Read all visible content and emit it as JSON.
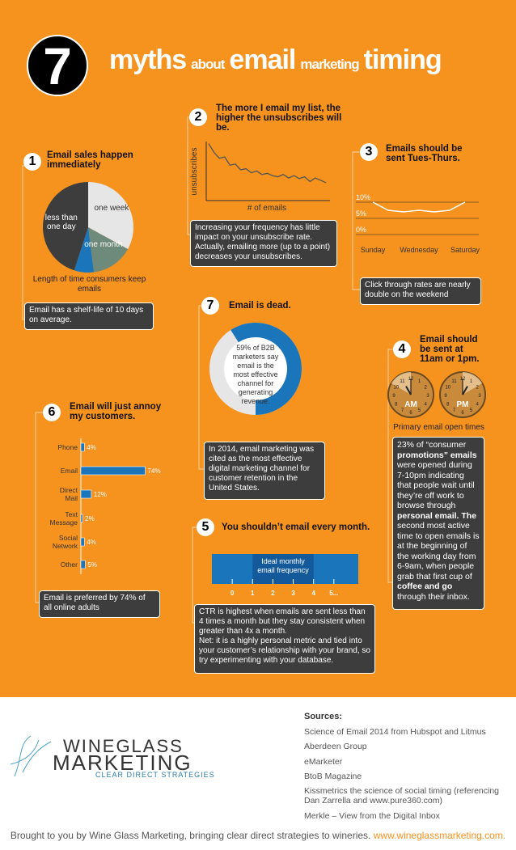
{
  "header": {
    "number": "7",
    "title_parts": [
      "myths",
      "about",
      "email",
      "marketing",
      "timing"
    ]
  },
  "myth1": {
    "number": "1",
    "title": "Email sales happen immediately",
    "pie": {
      "labels": [
        "one week",
        "one month",
        null,
        "less than one day"
      ],
      "values": [
        33,
        15,
        7,
        45
      ],
      "colors": [
        "#e6e6e6",
        "#6d8a7a",
        "#1b75bb",
        "#3d3d3d"
      ]
    },
    "caption": "Length of time consumers keep emails",
    "note": "Email has a shelf-life of 10 days on average."
  },
  "myth2": {
    "number": "2",
    "title": "The more I email my list, the higher the unsubscribes will be.",
    "ylabel": "unsubscribes",
    "xlabel": "# of emails",
    "values": [
      95,
      80,
      70,
      72,
      58,
      60,
      50,
      52,
      45,
      48,
      42,
      44,
      40,
      38,
      42,
      36,
      40,
      35,
      38,
      30,
      36,
      32,
      28
    ],
    "ylim": [
      0,
      100
    ],
    "note": "Increasing your frequency has little impact on your unsubscribe rate. Actually, emailing more (up to a point) decreases your unsubscribes."
  },
  "myth3": {
    "number": "3",
    "title": "Emails should be sent Tues-Thurs.",
    "categories": [
      "Sunday",
      null,
      null,
      "Wednesday",
      null,
      null,
      "Saturday"
    ],
    "values": [
      10,
      7.5,
      7,
      7.5,
      7,
      7.5,
      10
    ],
    "ylim": [
      0,
      10
    ],
    "yticks": [
      {
        "value": 10,
        "label": "10%"
      },
      {
        "value": 5,
        "label": "5%"
      },
      {
        "value": 0,
        "label": "0%"
      }
    ],
    "grid": true,
    "note": "Click through rates are nearly double on the weekend"
  },
  "myth7": {
    "number": "7",
    "title": "Email is dead.",
    "donut": {
      "value": 59,
      "label": "59% of B2B marketers say email is the most effective channel for generating revenue."
    },
    "note": "In 2014, email marketing was cited as the most effective digital marketing channel for customer retention in the United States."
  },
  "myth4": {
    "number": "4",
    "title": "Email should be sent at 11am or 1pm.",
    "clocks": [
      {
        "label": "AM",
        "hour": 11
      },
      {
        "label": "PM",
        "hour": 1
      }
    ],
    "face": [
      12,
      1,
      2,
      3,
      4,
      5,
      6,
      7,
      8,
      9,
      10,
      11
    ],
    "caption": "Primary email open times",
    "note": [
      {
        "text": "23% of “consumer ",
        "bold": false
      },
      {
        "text": "promotions” emails",
        "bold": true
      },
      {
        "text": " were opened during 7-10pm indicating that people wait until they’re off work to browse through ",
        "bold": false
      },
      {
        "text": "personal email.  The",
        "bold": true
      },
      {
        "text": " second most active time to open emails is at the beginning of the working day from 6-9am, when people grab that first cup of ",
        "bold": false
      },
      {
        "text": "coffee and go",
        "bold": true
      },
      {
        "text": " through their inbox.",
        "bold": false
      }
    ]
  },
  "myth6": {
    "number": "6",
    "title": "Email will just annoy my customers.",
    "categories": [
      "Phone",
      "Email",
      "Direct Mail",
      "Text Message",
      "Social Network",
      "Other"
    ],
    "values": [
      4,
      74,
      12,
      2,
      4,
      5
    ],
    "value_labels": [
      "4%",
      "74%",
      "12%",
      "2%",
      "4%",
      "5%"
    ],
    "xlim": [
      0,
      80
    ],
    "note": "Email is preferred by 74% of all online adults"
  },
  "myth5": {
    "number": "5",
    "title": "You shouldn’t email every month.",
    "range_label": "Ideal monthly email frequency",
    "range": [
      1,
      4
    ],
    "xlim": [
      -1,
      6.2
    ],
    "xticks": [
      0,
      1,
      2,
      3,
      4,
      {
        "value": 5,
        "label": "5..."
      }
    ],
    "note": "CTR is highest when emails are sent less than 4 times a month but they stay consistent when greater than 4x a month.\nNet: it is a highly personal metric and tied into your customer’s relationship with your brand, so try experimenting with your database."
  },
  "footer": {
    "logo": [
      "WineGlass",
      "Marketing",
      "Clear Direct Strategies"
    ],
    "sources_title": "Sources:",
    "sources": [
      "Science of Email 2014 from Hubspot and Litmus",
      "Aberdeen Group",
      "eMarketer",
      "BtoB Magazine",
      "Kissmetrics the science of social timing (referencing Dan Zarrella and www.pure360.com)",
      "Merkle – View from the Digital Inbox"
    ],
    "credit": "Brought to you by Wine Glass Marketing, bringing clear direct strategies to wineries.",
    "link": "www.wineglassmarketing.com."
  }
}
